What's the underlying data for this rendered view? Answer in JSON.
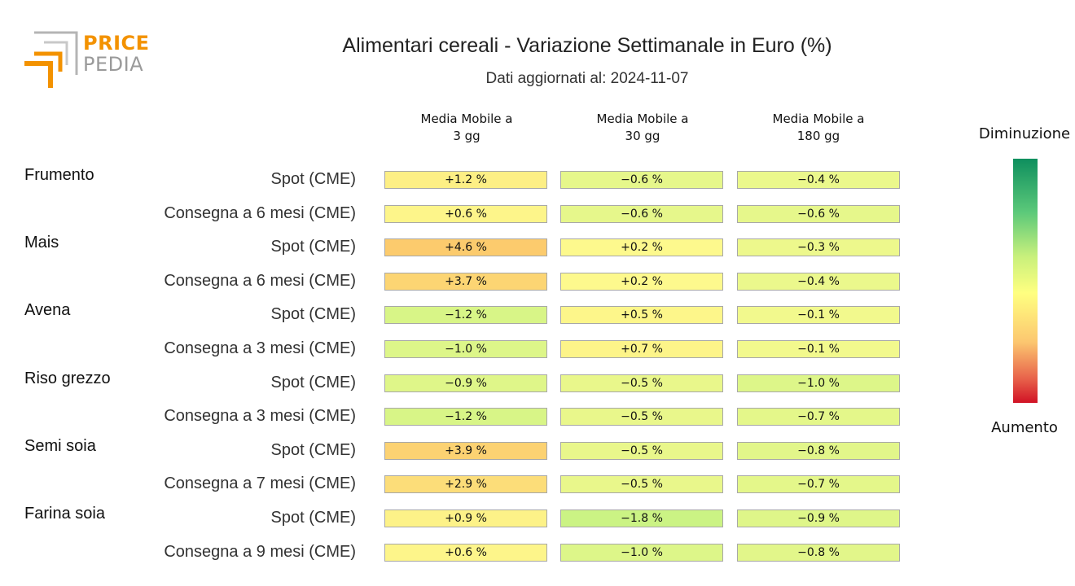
{
  "logo": {
    "line1": "PRICE",
    "line2": "PEDIA"
  },
  "title": "Alimentari cereali - Variazione Settimanale in Euro (%)",
  "subtitle": "Dati aggiornati al: 2024-11-07",
  "legend": {
    "top_label": "Diminuzione",
    "bottom_label": "Aumento",
    "colors": [
      "#0e8f5e",
      "#5cc97a",
      "#c8f07c",
      "#ffff80",
      "#fcc770",
      "#e8634b",
      "#d11225"
    ]
  },
  "chart_data": {
    "type": "heatmap",
    "columns": [
      {
        "line1": "Media Mobile a",
        "line2": "3 gg"
      },
      {
        "line1": "Media Mobile a",
        "line2": "30 gg"
      },
      {
        "line1": "Media Mobile a",
        "line2": "180 gg"
      }
    ],
    "groups": [
      {
        "name": "Frumento",
        "rows": [
          {
            "label": "Spot (CME)",
            "values": [
              1.2,
              -0.6,
              -0.4
            ],
            "text": [
              "+1.2 %",
              "−0.6 %",
              "−0.4 %"
            ]
          },
          {
            "label": "Consegna a 6 mesi (CME)",
            "values": [
              0.6,
              -0.6,
              -0.6
            ],
            "text": [
              "+0.6 %",
              "−0.6 %",
              "−0.6 %"
            ]
          }
        ]
      },
      {
        "name": "Mais",
        "rows": [
          {
            "label": "Spot (CME)",
            "values": [
              4.6,
              0.2,
              -0.3
            ],
            "text": [
              "+4.6 %",
              "+0.2 %",
              "−0.3 %"
            ]
          },
          {
            "label": "Consegna a 6 mesi (CME)",
            "values": [
              3.7,
              0.2,
              -0.4
            ],
            "text": [
              "+3.7 %",
              "+0.2 %",
              "−0.4 %"
            ]
          }
        ]
      },
      {
        "name": "Avena",
        "rows": [
          {
            "label": "Spot (CME)",
            "values": [
              -1.2,
              0.5,
              -0.1
            ],
            "text": [
              "−1.2 %",
              "+0.5 %",
              "−0.1 %"
            ]
          },
          {
            "label": "Consegna a 3 mesi (CME)",
            "values": [
              -1.0,
              0.7,
              -0.1
            ],
            "text": [
              "−1.0 %",
              "+0.7 %",
              "−0.1 %"
            ]
          }
        ]
      },
      {
        "name": "Riso grezzo",
        "rows": [
          {
            "label": "Spot (CME)",
            "values": [
              -0.9,
              -0.5,
              -1.0
            ],
            "text": [
              "−0.9 %",
              "−0.5 %",
              "−1.0 %"
            ]
          },
          {
            "label": "Consegna a 3 mesi (CME)",
            "values": [
              -1.2,
              -0.5,
              -0.7
            ],
            "text": [
              "−1.2 %",
              "−0.5 %",
              "−0.7 %"
            ]
          }
        ]
      },
      {
        "name": "Semi soia",
        "rows": [
          {
            "label": "Spot (CME)",
            "values": [
              3.9,
              -0.5,
              -0.8
            ],
            "text": [
              "+3.9 %",
              "−0.5 %",
              "−0.8 %"
            ]
          },
          {
            "label": "Consegna a 7 mesi (CME)",
            "values": [
              2.9,
              -0.5,
              -0.7
            ],
            "text": [
              "+2.9 %",
              "−0.5 %",
              "−0.7 %"
            ]
          }
        ]
      },
      {
        "name": "Farina soia",
        "rows": [
          {
            "label": "Spot (CME)",
            "values": [
              0.9,
              -1.8,
              -0.9
            ],
            "text": [
              "+0.9 %",
              "−1.8 %",
              "−0.9 %"
            ]
          },
          {
            "label": "Consegna a 9 mesi (CME)",
            "values": [
              0.6,
              -1.0,
              -0.8
            ],
            "text": [
              "+0.6 %",
              "−1.0 %",
              "−0.8 %"
            ]
          }
        ]
      }
    ]
  }
}
